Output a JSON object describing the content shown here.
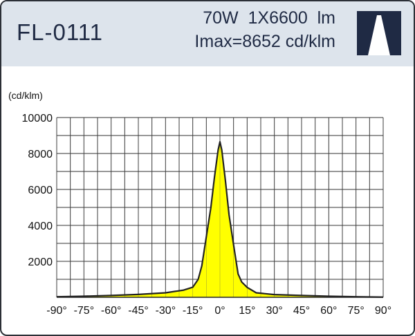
{
  "header": {
    "model": "FL-0111",
    "spec_line1": "70W  1X6600  lm",
    "spec_line2": "Imax=8652 cd/klm",
    "logo_icon": "beam-logo-icon"
  },
  "colors": {
    "header_bg": "#dde4ec",
    "fill": "#ffff00",
    "outline": "#222222",
    "logo_dark": "#1f2a44"
  },
  "chart_data": {
    "type": "area",
    "ylabel": "(cd/klm)",
    "xlim": [
      -90,
      90
    ],
    "ylim": [
      0,
      10000
    ],
    "grid": true,
    "x_ticks": [
      -90,
      -75,
      -60,
      -45,
      -30,
      -15,
      0,
      15,
      30,
      45,
      60,
      75,
      90
    ],
    "x_tick_labels": [
      "-90°",
      "-75°",
      "-60°",
      "-45°",
      "-30°",
      "-15°",
      "0°",
      "15°",
      "30°",
      "45°",
      "60°",
      "75°",
      "90°"
    ],
    "y_ticks": [
      0,
      2000,
      4000,
      6000,
      8000,
      10000
    ],
    "y_tick_labels": [
      "",
      "2000",
      "4000",
      "6000",
      "8000",
      "10000"
    ],
    "series": [
      {
        "x": [
          -90,
          -75,
          -60,
          -45,
          -30,
          -20,
          -15,
          -12,
          -10,
          -8,
          -5,
          -3,
          -1,
          0,
          1,
          3,
          5,
          8,
          10,
          12,
          15,
          20,
          30,
          45,
          60,
          75,
          90
        ],
        "y": [
          30,
          60,
          100,
          160,
          250,
          400,
          560,
          1000,
          1750,
          3050,
          5000,
          6700,
          8200,
          8652,
          8200,
          6500,
          4600,
          2600,
          1300,
          850,
          550,
          250,
          150,
          100,
          60,
          30,
          10
        ]
      }
    ]
  }
}
